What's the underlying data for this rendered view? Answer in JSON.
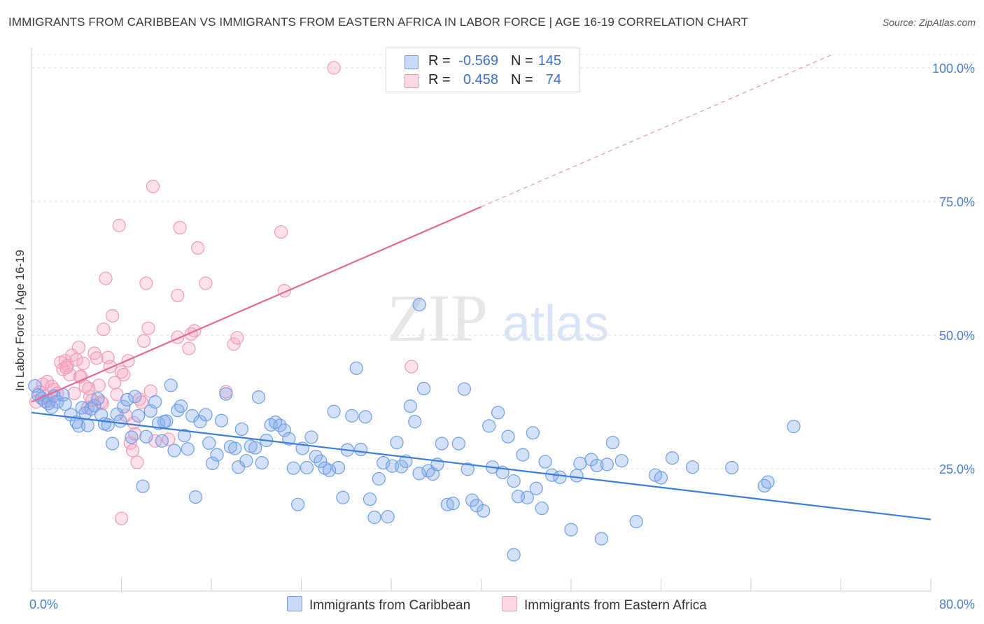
{
  "title": "IMMIGRANTS FROM CARIBBEAN VS IMMIGRANTS FROM EASTERN AFRICA IN LABOR FORCE | AGE 16-19 CORRELATION CHART",
  "source": "Source: ZipAtlas.com",
  "watermark": {
    "zip": "ZIP",
    "atlas": "atlas"
  },
  "legend": {
    "rows": [
      {
        "r_label": "R =",
        "r_value": "-0.569",
        "n_label": "N =",
        "n_value": "145"
      },
      {
        "r_label": "R =",
        "r_value": "0.458",
        "n_label": "N =",
        "n_value": "74"
      }
    ]
  },
  "bottom_legend": {
    "items": [
      "Immigrants from Caribbean",
      "Immigrants from Eastern Africa"
    ]
  },
  "colors": {
    "blue": "#3b7dd8",
    "blue_fill": "rgba(130,170,235,0.35)",
    "blue_stroke": "#6f9ee6",
    "pink": "#e06a96",
    "pink_fill": "rgba(245,170,195,0.35)",
    "pink_stroke": "#ef9ab8",
    "tick": "#4a7fd0"
  },
  "chart_data": {
    "type": "scatter",
    "title": "IMMIGRANTS FROM CARIBBEAN VS IMMIGRANTS FROM EASTERN AFRICA IN LABOR FORCE | AGE 16-19 CORRELATION CHART",
    "xlabel": "",
    "ylabel": "In Labor Force | Age 16-19",
    "xlim": [
      0,
      80
    ],
    "ylim": [
      0,
      105
    ],
    "x_ticks": [
      {
        "v": 0,
        "label": "0.0%"
      },
      {
        "v": 80,
        "label": "80.0%"
      }
    ],
    "y_ticks": [
      {
        "v": 25,
        "label": "25.0%"
      },
      {
        "v": 50,
        "label": "50.0%"
      },
      {
        "v": 75,
        "label": "75.0%"
      },
      {
        "v": 100,
        "label": "100.0%"
      }
    ],
    "grid": "horizontal dashed",
    "series": [
      {
        "name": "Immigrants from Caribbean",
        "color": "blue",
        "trend": {
          "x0": 0,
          "y0": 35.5,
          "x1": 80,
          "y1": 15.5
        },
        "points": [
          [
            0.3,
            40.5
          ],
          [
            0.6,
            38.8
          ],
          [
            0.9,
            38.2
          ],
          [
            1.2,
            37.6
          ],
          [
            1.5,
            37.2
          ],
          [
            1.8,
            36.5
          ],
          [
            2.0,
            38.6
          ],
          [
            2.3,
            37.5
          ],
          [
            2.8,
            38.8
          ],
          [
            3.0,
            37.1
          ],
          [
            3.5,
            35.1
          ],
          [
            4.0,
            33.7
          ],
          [
            4.2,
            33.0
          ],
          [
            4.5,
            36.4
          ],
          [
            4.8,
            35.4
          ],
          [
            5.0,
            33.1
          ],
          [
            5.3,
            36.2
          ],
          [
            5.6,
            36.8
          ],
          [
            5.9,
            38.1
          ],
          [
            6.2,
            35.1
          ],
          [
            6.5,
            33.4
          ],
          [
            6.8,
            33.2
          ],
          [
            7.2,
            29.7
          ],
          [
            7.6,
            35.2
          ],
          [
            7.9,
            33.9
          ],
          [
            8.2,
            36.6
          ],
          [
            8.5,
            37.9
          ],
          [
            8.9,
            30.9
          ],
          [
            9.2,
            38.5
          ],
          [
            9.5,
            34.9
          ],
          [
            9.9,
            21.7
          ],
          [
            10.2,
            31.0
          ],
          [
            10.6,
            35.8
          ],
          [
            11.0,
            37.5
          ],
          [
            11.3,
            33.5
          ],
          [
            11.6,
            30.2
          ],
          [
            12.0,
            33.9
          ],
          [
            12.4,
            40.6
          ],
          [
            12.7,
            28.4
          ],
          [
            13.0,
            35.9
          ],
          [
            13.3,
            36.7
          ],
          [
            13.6,
            31.2
          ],
          [
            13.9,
            28.7
          ],
          [
            14.3,
            34.9
          ],
          [
            14.6,
            19.7
          ],
          [
            15.0,
            33.8
          ],
          [
            15.5,
            35.1
          ],
          [
            15.8,
            29.8
          ],
          [
            16.1,
            26.0
          ],
          [
            16.5,
            27.6
          ],
          [
            16.9,
            34.0
          ],
          [
            17.3,
            39.0
          ],
          [
            17.7,
            29.1
          ],
          [
            18.1,
            28.8
          ],
          [
            18.4,
            25.3
          ],
          [
            18.7,
            32.4
          ],
          [
            19.1,
            26.5
          ],
          [
            19.5,
            29.2
          ],
          [
            19.9,
            28.9
          ],
          [
            20.2,
            38.4
          ],
          [
            20.5,
            26.1
          ],
          [
            20.9,
            30.3
          ],
          [
            21.3,
            33.2
          ],
          [
            21.7,
            33.7
          ],
          [
            22.1,
            33.1
          ],
          [
            22.5,
            32.2
          ],
          [
            22.9,
            30.6
          ],
          [
            23.3,
            25.1
          ],
          [
            23.7,
            18.3
          ],
          [
            24.1,
            28.8
          ],
          [
            24.5,
            25.2
          ],
          [
            24.9,
            30.9
          ],
          [
            25.3,
            27.3
          ],
          [
            25.7,
            26.4
          ],
          [
            26.1,
            25.1
          ],
          [
            26.5,
            24.7
          ],
          [
            26.9,
            35.7
          ],
          [
            27.3,
            25.2
          ],
          [
            27.7,
            19.6
          ],
          [
            28.1,
            28.5
          ],
          [
            28.5,
            34.9
          ],
          [
            28.9,
            43.8
          ],
          [
            29.3,
            28.6
          ],
          [
            29.7,
            34.7
          ],
          [
            30.1,
            19.3
          ],
          [
            30.5,
            15.9
          ],
          [
            30.9,
            23.1
          ],
          [
            31.3,
            26.1
          ],
          [
            31.7,
            16.0
          ],
          [
            32.1,
            25.5
          ],
          [
            32.5,
            29.9
          ],
          [
            32.9,
            25.4
          ],
          [
            33.3,
            26.4
          ],
          [
            33.7,
            36.7
          ],
          [
            34.1,
            33.8
          ],
          [
            34.5,
            24.1
          ],
          [
            34.9,
            40.0
          ],
          [
            35.3,
            24.6
          ],
          [
            35.7,
            24.0
          ],
          [
            36.1,
            25.8
          ],
          [
            36.5,
            29.7
          ],
          [
            37.0,
            18.3
          ],
          [
            37.5,
            18.5
          ],
          [
            38.0,
            29.7
          ],
          [
            38.5,
            39.9
          ],
          [
            38.8,
            24.9
          ],
          [
            39.2,
            19.1
          ],
          [
            39.6,
            18.1
          ],
          [
            40.2,
            17.1
          ],
          [
            40.7,
            33.0
          ],
          [
            41.0,
            25.3
          ],
          [
            41.5,
            35.5
          ],
          [
            41.9,
            24.3
          ],
          [
            42.4,
            31.0
          ],
          [
            42.9,
            22.7
          ],
          [
            43.3,
            19.8
          ],
          [
            43.7,
            27.6
          ],
          [
            44.1,
            19.6
          ],
          [
            44.6,
            31.7
          ],
          [
            44.9,
            21.3
          ],
          [
            45.4,
            17.6
          ],
          [
            45.7,
            26.3
          ],
          [
            46.3,
            23.8
          ],
          [
            47.0,
            23.4
          ],
          [
            48.0,
            13.6
          ],
          [
            48.5,
            23.7
          ],
          [
            48.8,
            26.0
          ],
          [
            49.8,
            26.7
          ],
          [
            50.3,
            25.6
          ],
          [
            50.7,
            11.9
          ],
          [
            51.2,
            25.8
          ],
          [
            51.7,
            29.9
          ],
          [
            52.5,
            26.5
          ],
          [
            53.8,
            15.1
          ],
          [
            55.5,
            23.8
          ],
          [
            56.0,
            23.3
          ],
          [
            57.0,
            27.0
          ],
          [
            58.8,
            25.3
          ],
          [
            62.3,
            25.2
          ],
          [
            65.2,
            21.8
          ],
          [
            65.5,
            22.5
          ],
          [
            67.8,
            32.9
          ],
          [
            42.9,
            8.9
          ],
          [
            34.5,
            55.7
          ],
          [
            11.8,
            33.8
          ]
        ]
      },
      {
        "name": "Immigrants from Eastern Africa",
        "color": "pink",
        "trend": {
          "x0": 0,
          "y0": 37.5,
          "x1": 40,
          "y1": 74.0,
          "dash_to_x": 80,
          "dash_to_y": 110
        },
        "points": [
          [
            0.4,
            37.5
          ],
          [
            0.7,
            39.3
          ],
          [
            1.0,
            40.8
          ],
          [
            1.2,
            38.6
          ],
          [
            1.4,
            41.3
          ],
          [
            1.6,
            37.7
          ],
          [
            1.8,
            40.4
          ],
          [
            2.0,
            39.8
          ],
          [
            2.3,
            39.1
          ],
          [
            2.6,
            44.9
          ],
          [
            2.8,
            43.6
          ],
          [
            3.0,
            45.2
          ],
          [
            3.2,
            44.3
          ],
          [
            3.4,
            42.6
          ],
          [
            3.6,
            46.2
          ],
          [
            3.8,
            39.1
          ],
          [
            4.0,
            45.4
          ],
          [
            4.2,
            47.7
          ],
          [
            4.4,
            42.3
          ],
          [
            4.6,
            44.7
          ],
          [
            4.8,
            40.4
          ],
          [
            5.0,
            36.4
          ],
          [
            5.2,
            38.5
          ],
          [
            5.4,
            37.8
          ],
          [
            5.6,
            46.6
          ],
          [
            5.8,
            45.7
          ],
          [
            6.0,
            40.6
          ],
          [
            6.2,
            37.5
          ],
          [
            6.4,
            51.1
          ],
          [
            6.6,
            60.6
          ],
          [
            6.8,
            45.8
          ],
          [
            7.0,
            44.1
          ],
          [
            7.2,
            53.6
          ],
          [
            7.4,
            41.1
          ],
          [
            7.6,
            38.9
          ],
          [
            7.8,
            70.5
          ],
          [
            8.0,
            43.1
          ],
          [
            8.2,
            42.6
          ],
          [
            8.4,
            35.0
          ],
          [
            8.6,
            45.2
          ],
          [
            8.8,
            29.8
          ],
          [
            9.0,
            28.4
          ],
          [
            9.2,
            31.5
          ],
          [
            9.4,
            26.2
          ],
          [
            9.6,
            38.0
          ],
          [
            9.8,
            37.4
          ],
          [
            10.0,
            48.9
          ],
          [
            10.2,
            59.7
          ],
          [
            10.4,
            51.3
          ],
          [
            10.6,
            39.5
          ],
          [
            10.8,
            77.8
          ],
          [
            11.0,
            30.2
          ],
          [
            13.0,
            57.4
          ],
          [
            13.2,
            70.1
          ],
          [
            14.0,
            47.5
          ],
          [
            14.5,
            50.8
          ],
          [
            14.8,
            66.3
          ],
          [
            15.5,
            59.7
          ],
          [
            17.3,
            39.4
          ],
          [
            18.0,
            48.3
          ],
          [
            18.3,
            49.5
          ],
          [
            22.5,
            58.3
          ],
          [
            22.2,
            69.3
          ],
          [
            26.9,
            100.0
          ],
          [
            33.8,
            44.1
          ],
          [
            8.0,
            15.7
          ],
          [
            12.2,
            30.5
          ],
          [
            9.1,
            33.6
          ],
          [
            13.0,
            49.6
          ],
          [
            14.2,
            50.2
          ],
          [
            6.3,
            37.2
          ],
          [
            5.1,
            40.0
          ],
          [
            4.3,
            42.2
          ],
          [
            3.1,
            43.9
          ]
        ]
      }
    ]
  }
}
